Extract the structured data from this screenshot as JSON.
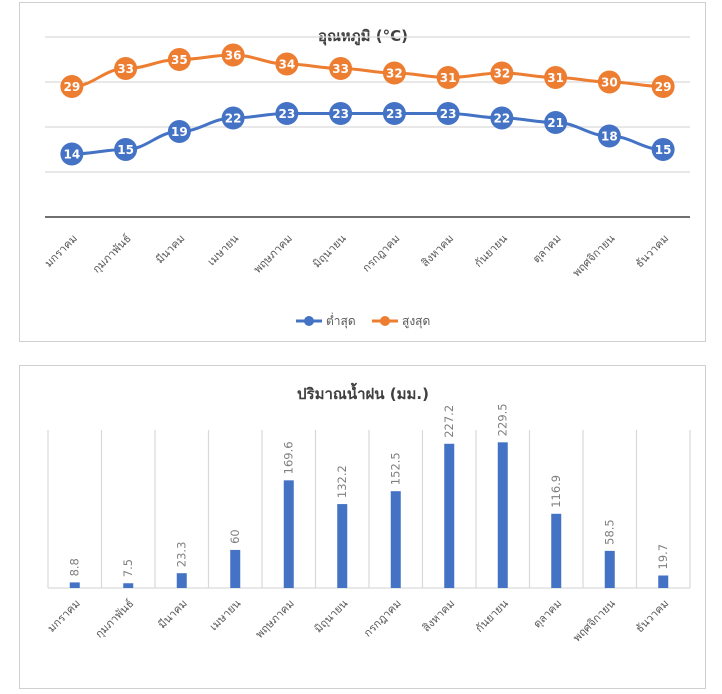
{
  "colors": {
    "min_series": "#4472c4",
    "max_series": "#ed7d31",
    "rain_bar": "#4472c4",
    "grid": "#d9d9d9",
    "axis": "#404040"
  },
  "chart_data": [
    {
      "type": "line",
      "title": "อุณหภูมิ (°C)",
      "categories": [
        "มกราคม",
        "กุมภาพันธ์",
        "มีนาคม",
        "เมษายน",
        "พฤษภาคม",
        "มิถุนายน",
        "กรกฎาคม",
        "สิงหาคม",
        "กันยายน",
        "ตุลาคม",
        "พฤศจิกายน",
        "ธันวาคม"
      ],
      "series": [
        {
          "name": "ต่ำสุด",
          "values": [
            14,
            15,
            19,
            22,
            23,
            23,
            23,
            23,
            22,
            21,
            18,
            15
          ]
        },
        {
          "name": "สูงสุด",
          "values": [
            29,
            33,
            35,
            36,
            34,
            33,
            32,
            31,
            32,
            31,
            30,
            29
          ]
        }
      ],
      "ylim": [
        0,
        40
      ],
      "gridlines": true,
      "legend": "bottom"
    },
    {
      "type": "bar",
      "title": "ปริมาณน้ำฝน (มม.)",
      "categories": [
        "มกราคม",
        "กุมภาพันธ์",
        "มีนาคม",
        "เมษายน",
        "พฤษภาคม",
        "มิถุนายน",
        "กรกฎาคม",
        "สิงหาคม",
        "กันยายน",
        "ตุลาคม",
        "พฤศจิกายน",
        "ธันวาคม"
      ],
      "values": [
        8.8,
        7.5,
        23.3,
        60,
        169.6,
        132.2,
        152.5,
        227.2,
        229.5,
        116.9,
        58.5,
        19.7
      ],
      "ylim": [
        0,
        230
      ],
      "gridlines": "vertical"
    }
  ]
}
